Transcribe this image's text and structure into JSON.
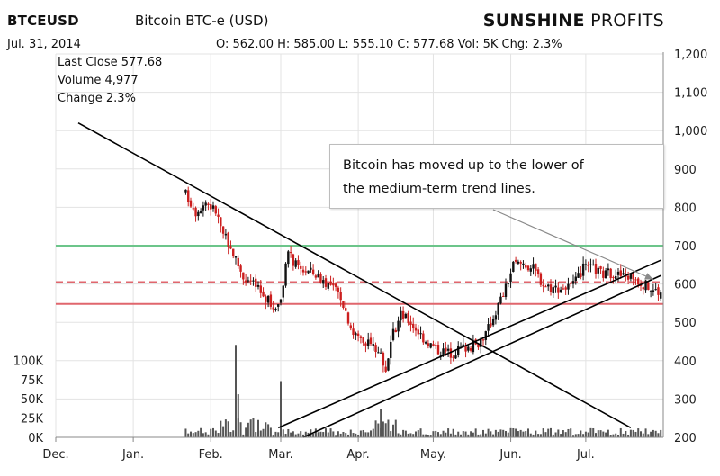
{
  "header": {
    "symbol": "BTCEUSD",
    "description": "Bitcoin BTC-e (USD)",
    "brand_bold": "SUNSHINE",
    "brand_light": "PROFITS",
    "date": "Jul. 31, 2014",
    "ohlc": "O: 562.00  H: 585.00  L: 555.10  C: 577.68  Vol: 5K  Chg: 2.3%"
  },
  "info": {
    "last_close": "Last Close 577.68",
    "volume": "Volume 4,977",
    "change": "Change 2.3%"
  },
  "annotation": {
    "line1": "Bitcoin has moved up to the lower of",
    "line2": "the medium-term trend lines."
  },
  "chart_data": {
    "type": "candlestick",
    "x_labels": [
      "Dec.",
      "Jan.",
      "Feb.",
      "Mar.",
      "Apr.",
      "May.",
      "Jun.",
      "Jul."
    ],
    "y_ticks": [
      200,
      300,
      400,
      500,
      600,
      700,
      800,
      900,
      1000,
      1100,
      1200
    ],
    "y_tick_labels": [
      "200",
      "300",
      "400",
      "500",
      "600",
      "700",
      "800",
      "900",
      "1,000",
      "1,100",
      "1,200"
    ],
    "ylim": [
      200,
      1200
    ],
    "volume_ticks": [
      0,
      25000,
      50000,
      75000,
      100000
    ],
    "volume_tick_labels": [
      "0K",
      "25K",
      "50K",
      "75K",
      "100K"
    ],
    "price_anchors": [
      {
        "date": "2014-01-22",
        "close": 835
      },
      {
        "date": "2014-01-26",
        "close": 790
      },
      {
        "date": "2014-01-30",
        "close": 815
      },
      {
        "date": "2014-02-03",
        "close": 790
      },
      {
        "date": "2014-02-06",
        "close": 730
      },
      {
        "date": "2014-02-10",
        "close": 680
      },
      {
        "date": "2014-02-14",
        "close": 620
      },
      {
        "date": "2014-02-18",
        "close": 600
      },
      {
        "date": "2014-02-22",
        "close": 570
      },
      {
        "date": "2014-02-26",
        "close": 540
      },
      {
        "date": "2014-03-01",
        "close": 560
      },
      {
        "date": "2014-03-04",
        "close": 680
      },
      {
        "date": "2014-03-08",
        "close": 640
      },
      {
        "date": "2014-03-14",
        "close": 630
      },
      {
        "date": "2014-03-20",
        "close": 600
      },
      {
        "date": "2014-03-25",
        "close": 570
      },
      {
        "date": "2014-03-30",
        "close": 470
      },
      {
        "date": "2014-04-05",
        "close": 450
      },
      {
        "date": "2014-04-10",
        "close": 420
      },
      {
        "date": "2014-04-12",
        "close": 380
      },
      {
        "date": "2014-04-15",
        "close": 470
      },
      {
        "date": "2014-04-18",
        "close": 520
      },
      {
        "date": "2014-04-22",
        "close": 500
      },
      {
        "date": "2014-04-27",
        "close": 460
      },
      {
        "date": "2014-05-02",
        "close": 430
      },
      {
        "date": "2014-05-08",
        "close": 420
      },
      {
        "date": "2014-05-13",
        "close": 435
      },
      {
        "date": "2014-05-18",
        "close": 440
      },
      {
        "date": "2014-05-22",
        "close": 470
      },
      {
        "date": "2014-05-26",
        "close": 530
      },
      {
        "date": "2014-05-30",
        "close": 590
      },
      {
        "date": "2014-06-02",
        "close": 650
      },
      {
        "date": "2014-06-06",
        "close": 655
      },
      {
        "date": "2014-06-10",
        "close": 640
      },
      {
        "date": "2014-06-14",
        "close": 600
      },
      {
        "date": "2014-06-18",
        "close": 590
      },
      {
        "date": "2014-06-22",
        "close": 590
      },
      {
        "date": "2014-06-26",
        "close": 595
      },
      {
        "date": "2014-06-30",
        "close": 640
      },
      {
        "date": "2014-07-04",
        "close": 640
      },
      {
        "date": "2014-07-08",
        "close": 625
      },
      {
        "date": "2014-07-12",
        "close": 630
      },
      {
        "date": "2014-07-16",
        "close": 620
      },
      {
        "date": "2014-07-20",
        "close": 620
      },
      {
        "date": "2014-07-24",
        "close": 600
      },
      {
        "date": "2014-07-28",
        "close": 585
      },
      {
        "date": "2014-07-31",
        "close": 578
      }
    ],
    "horizontal_lines": [
      {
        "value": 700,
        "color": "#6cc58a",
        "style": "solid"
      },
      {
        "value": 605,
        "color": "#e0666d",
        "style": "dashed"
      },
      {
        "value": 548,
        "color": "#e0666d",
        "style": "solid"
      }
    ],
    "trend_lines": [
      {
        "from": {
          "date": "2013-12-10",
          "value": 1020
        },
        "to": {
          "date": "2014-07-19",
          "value": 225
        }
      },
      {
        "from": {
          "date": "2014-02-28",
          "value": 225
        },
        "to": {
          "date": "2014-07-31",
          "value": 662
        }
      },
      {
        "from": {
          "date": "2014-03-10",
          "value": 200
        },
        "to": {
          "date": "2014-07-31",
          "value": 622
        }
      }
    ],
    "colors": {
      "up": "#111111",
      "down": "#cc1f1f",
      "volume": "#555555"
    }
  }
}
